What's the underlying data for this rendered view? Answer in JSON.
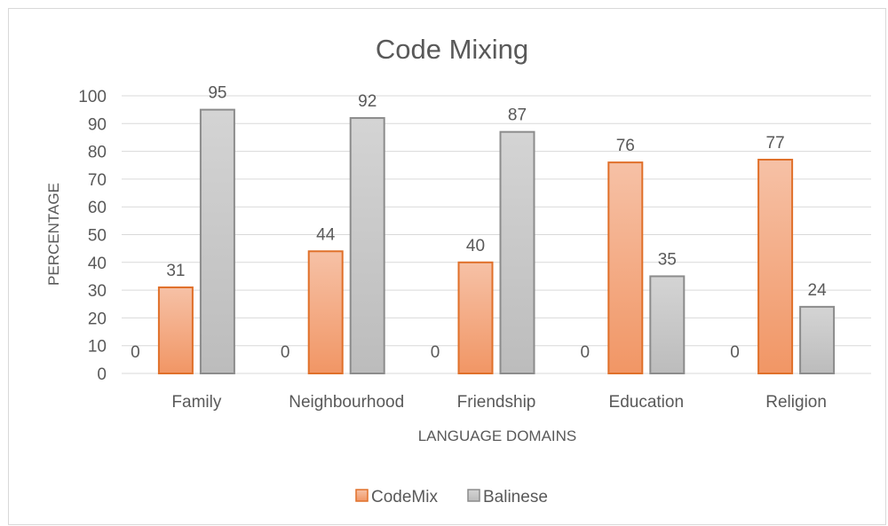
{
  "chart_data": {
    "type": "bar",
    "title": "Code Mixing",
    "xlabel": "LANGUAGE DOMAINS",
    "ylabel": "PERCENTAGE",
    "categories": [
      "Family",
      "Neighbourhood",
      "Friendship",
      "Education",
      "Religion"
    ],
    "ylim": [
      0,
      100
    ],
    "yticks": [
      0,
      10,
      20,
      30,
      40,
      50,
      60,
      70,
      80,
      90,
      100
    ],
    "grid": true,
    "legend_position": "bottom",
    "zero_series_labels": [
      "0",
      "0",
      "0",
      "0",
      "0"
    ],
    "series": [
      {
        "name": "CodeMix",
        "values": [
          31,
          44,
          40,
          76,
          77
        ],
        "color": "#ed7d31"
      },
      {
        "name": "Balinese",
        "values": [
          95,
          92,
          87,
          35,
          24
        ],
        "color": "#a5a5a5"
      }
    ]
  }
}
